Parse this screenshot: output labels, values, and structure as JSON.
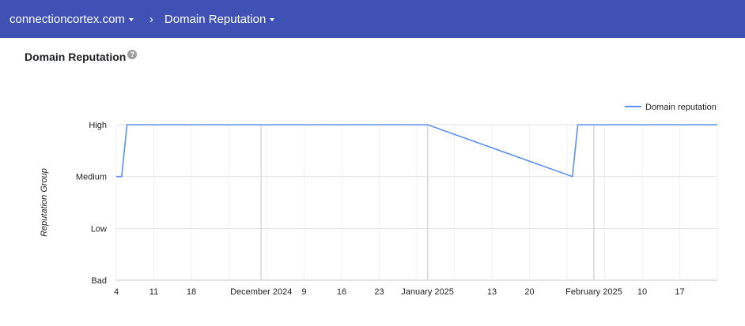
{
  "header": {
    "property": "connectioncortex.com",
    "separator": "›",
    "page": "Domain Reputation"
  },
  "section": {
    "title": "Domain Reputation",
    "help_icon": "help-icon"
  },
  "colors": {
    "header_bg": "#3f51b5",
    "line": "#5b8ff0"
  },
  "chart_data": {
    "type": "line",
    "ylabel": "Reputation Group",
    "y_levels": [
      "Bad",
      "Low",
      "Medium",
      "High"
    ],
    "x_ticks": [
      {
        "date": "2024-11-04",
        "label": "4"
      },
      {
        "date": "2024-11-11",
        "label": "11"
      },
      {
        "date": "2024-11-18",
        "label": "18"
      },
      {
        "date": "2024-12-01",
        "label": "December 2024"
      },
      {
        "date": "2024-12-09",
        "label": "9"
      },
      {
        "date": "2024-12-16",
        "label": "16"
      },
      {
        "date": "2024-12-23",
        "label": "23"
      },
      {
        "date": "2025-01-01",
        "label": "January 2025"
      },
      {
        "date": "2025-01-13",
        "label": "13"
      },
      {
        "date": "2025-01-20",
        "label": "20"
      },
      {
        "date": "2025-02-01",
        "label": "February 2025"
      },
      {
        "date": "2025-02-10",
        "label": "10"
      },
      {
        "date": "2025-02-17",
        "label": "17"
      }
    ],
    "xlim": [
      "2024-11-04",
      "2025-02-24"
    ],
    "legend": {
      "position": "top-right"
    },
    "series": [
      {
        "name": "Domain reputation",
        "points": [
          {
            "x": "2024-11-04",
            "y": "Medium"
          },
          {
            "x": "2024-11-05",
            "y": "Medium"
          },
          {
            "x": "2024-11-06",
            "y": "High"
          },
          {
            "x": "2025-01-01",
            "y": "High"
          },
          {
            "x": "2025-01-28",
            "y": "Medium"
          },
          {
            "x": "2025-01-29",
            "y": "High"
          },
          {
            "x": "2025-02-24",
            "y": "High"
          }
        ]
      }
    ]
  }
}
